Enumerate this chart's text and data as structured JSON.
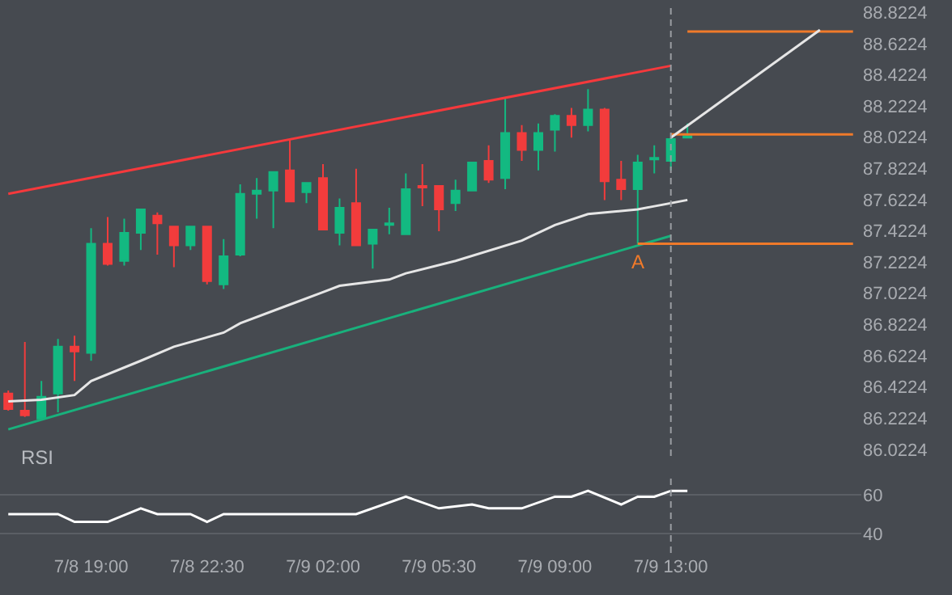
{
  "chart_data": [
    {
      "type": "candlestick",
      "categories": [
        null,
        null,
        null,
        null,
        null,
        "7/8 19:00",
        null,
        null,
        null,
        null,
        null,
        null,
        "7/8 22:30",
        null,
        null,
        null,
        null,
        null,
        null,
        "7/9 02:00",
        null,
        null,
        null,
        null,
        null,
        null,
        "7/9 05:30",
        null,
        null,
        null,
        null,
        null,
        null,
        "7/9 09:00",
        null,
        null,
        null,
        null,
        null,
        null,
        "7/9 13:00",
        null,
        null,
        null,
        null,
        null,
        null,
        null,
        null,
        null,
        null,
        null
      ],
      "ohlc": [
        [
          86.38,
          86.4,
          86.27,
          86.28
        ],
        [
          86.27,
          86.71,
          86.23,
          86.24
        ],
        [
          86.22,
          86.46,
          86.21,
          86.36
        ],
        [
          86.38,
          86.73,
          86.26,
          86.68
        ],
        [
          86.68,
          86.75,
          86.46,
          86.65
        ],
        [
          86.64,
          87.44,
          86.59,
          87.34
        ],
        [
          87.34,
          87.51,
          87.2,
          87.21
        ],
        [
          87.23,
          87.5,
          87.2,
          87.41
        ],
        [
          87.41,
          87.56,
          87.3,
          87.56
        ],
        [
          87.52,
          87.54,
          87.27,
          87.47
        ],
        [
          87.45,
          87.45,
          87.19,
          87.33
        ],
        [
          87.33,
          87.45,
          87.3,
          87.45
        ],
        [
          87.45,
          87.45,
          87.08,
          87.1
        ],
        [
          87.08,
          87.37,
          87.05,
          87.26
        ],
        [
          87.27,
          87.72,
          87.26,
          87.66
        ],
        [
          87.66,
          87.76,
          87.5,
          87.68
        ],
        [
          87.68,
          87.8,
          87.44,
          87.8
        ],
        [
          87.81,
          88.01,
          87.61,
          87.61
        ],
        [
          87.67,
          87.73,
          87.6,
          87.73
        ],
        [
          87.76,
          87.85,
          87.43,
          87.43
        ],
        [
          87.41,
          87.63,
          87.33,
          87.57
        ],
        [
          87.6,
          87.82,
          87.33,
          87.33
        ],
        [
          87.34,
          87.43,
          87.18,
          87.43
        ],
        [
          87.46,
          87.57,
          87.4,
          87.47
        ],
        [
          87.4,
          87.79,
          87.4,
          87.69
        ],
        [
          87.71,
          87.85,
          87.58,
          87.7
        ],
        [
          87.71,
          87.71,
          87.42,
          87.56
        ],
        [
          87.6,
          87.75,
          87.55,
          87.68
        ],
        [
          87.68,
          87.86,
          87.68,
          87.86
        ],
        [
          87.87,
          87.97,
          87.73,
          87.75
        ],
        [
          87.76,
          88.28,
          87.69,
          88.05
        ],
        [
          88.05,
          88.1,
          87.87,
          87.94
        ],
        [
          87.94,
          88.11,
          87.81,
          88.05
        ],
        [
          88.07,
          88.17,
          87.93,
          88.16
        ],
        [
          88.16,
          88.21,
          88.02,
          88.1
        ],
        [
          88.1,
          88.33,
          88.06,
          88.2
        ],
        [
          88.2,
          88.21,
          87.62,
          87.74
        ],
        [
          87.75,
          87.87,
          87.62,
          87.69
        ],
        [
          87.69,
          87.91,
          87.34,
          87.86
        ],
        [
          87.88,
          87.97,
          87.79,
          87.89
        ],
        [
          87.87,
          88.02,
          87.81,
          88.01
        ],
        [
          88.02,
          88.11,
          88.02,
          88.03
        ],
        null,
        null,
        null,
        null,
        null,
        null,
        null,
        null,
        null,
        null
      ],
      "colors": [
        "#f23c3c",
        "#f23c3c",
        "#13b981",
        "#13b981",
        "#f23c3c",
        "#13b981",
        "#f23c3c",
        "#13b981",
        "#13b981",
        "#f23c3c",
        "#f23c3c",
        "#13b981",
        "#f23c3c",
        "#13b981",
        "#13b981",
        "#13b981",
        "#13b981",
        "#f23c3c",
        "#13b981",
        "#f23c3c",
        "#13b981",
        "#f23c3c",
        "#13b981",
        "#13b981",
        "#13b981",
        "#f23c3c",
        "#f23c3c",
        "#13b981",
        "#13b981",
        "#f23c3c",
        "#13b981",
        "#f23c3c",
        "#13b981",
        "#13b981",
        "#f23c3c",
        "#13b981",
        "#f23c3c",
        "#f23c3c",
        "#13b981",
        "#13b981",
        "#13b981",
        "#13b981",
        null,
        null,
        null,
        null,
        null,
        null,
        null,
        null,
        null,
        null
      ],
      "series": [
        {
          "type": "line",
          "color": "#e6e6e6",
          "values": [
            86.33,
            null,
            86.34,
            null,
            86.37,
            86.46,
            null,
            null,
            86.59,
            null,
            86.68,
            null,
            null,
            86.77,
            86.83,
            null,
            null,
            86.95,
            null,
            87.03,
            87.07,
            null,
            null,
            87.11,
            87.15,
            null,
            null,
            87.23,
            null,
            null,
            null,
            87.36,
            null,
            87.46,
            null,
            87.53,
            null,
            null,
            87.56,
            87.58,
            null,
            87.62,
            null,
            null,
            null,
            null,
            null,
            null,
            null,
            null,
            null,
            null
          ]
        },
        {
          "type": "line",
          "color": "#f5393c",
          "values": [
            87.66,
            null,
            null,
            null,
            null,
            null,
            null,
            null,
            null,
            null,
            null,
            null,
            null,
            null,
            null,
            null,
            null,
            null,
            null,
            null,
            null,
            null,
            null,
            null,
            null,
            null,
            null,
            null,
            null,
            null,
            null,
            null,
            null,
            null,
            null,
            null,
            null,
            null,
            null,
            null,
            88.48,
            null,
            null,
            null,
            null,
            null,
            null,
            null,
            null,
            null,
            null,
            null
          ]
        },
        {
          "type": "line",
          "color": "#19b17c",
          "values": [
            86.15,
            null,
            null,
            null,
            null,
            null,
            null,
            null,
            null,
            null,
            null,
            null,
            null,
            null,
            null,
            null,
            null,
            null,
            null,
            null,
            null,
            null,
            null,
            null,
            null,
            null,
            null,
            null,
            null,
            null,
            null,
            null,
            null,
            null,
            null,
            null,
            null,
            null,
            null,
            null,
            87.39,
            null,
            null,
            null,
            null,
            null,
            null,
            null,
            null,
            null,
            null,
            null
          ]
        },
        {
          "type": "line",
          "color": "#f07a2a",
          "values": [
            null,
            null,
            null,
            null,
            null,
            null,
            null,
            null,
            null,
            null,
            null,
            null,
            null,
            null,
            null,
            null,
            null,
            null,
            null,
            null,
            null,
            null,
            null,
            null,
            null,
            null,
            null,
            null,
            null,
            null,
            null,
            null,
            null,
            null,
            null,
            null,
            null,
            null,
            null,
            null,
            null,
            88.7,
            null,
            null,
            null,
            null,
            null,
            null,
            null,
            null,
            null,
            88.7
          ]
        },
        {
          "type": "line",
          "color": "#f07a2a",
          "values": [
            null,
            null,
            null,
            null,
            null,
            null,
            null,
            null,
            null,
            null,
            null,
            null,
            null,
            null,
            null,
            null,
            null,
            null,
            null,
            null,
            null,
            null,
            null,
            null,
            null,
            null,
            null,
            null,
            null,
            null,
            null,
            null,
            null,
            null,
            null,
            null,
            null,
            null,
            null,
            null,
            88.04,
            null,
            null,
            null,
            null,
            null,
            null,
            null,
            null,
            null,
            null,
            88.04
          ]
        },
        {
          "type": "line",
          "color": "#f07a2a",
          "values": [
            null,
            null,
            null,
            null,
            null,
            null,
            null,
            null,
            null,
            null,
            null,
            null,
            null,
            null,
            null,
            null,
            null,
            null,
            null,
            null,
            null,
            null,
            null,
            null,
            null,
            null,
            null,
            null,
            null,
            null,
            null,
            null,
            null,
            null,
            null,
            null,
            null,
            null,
            87.34,
            null,
            null,
            null,
            null,
            null,
            null,
            null,
            null,
            null,
            null,
            null,
            null,
            87.34
          ],
          "value_labels": [
            null,
            null,
            null,
            null,
            null,
            null,
            null,
            null,
            null,
            null,
            null,
            null,
            null,
            null,
            null,
            null,
            null,
            null,
            null,
            null,
            null,
            null,
            null,
            null,
            null,
            null,
            null,
            null,
            null,
            null,
            null,
            null,
            null,
            null,
            null,
            null,
            null,
            null,
            "A",
            null,
            null,
            null,
            null,
            null,
            null,
            null,
            null,
            null,
            null,
            null,
            null,
            null
          ]
        },
        {
          "type": "line",
          "color": "#e6e6e6",
          "values": [
            null,
            null,
            null,
            null,
            null,
            null,
            null,
            null,
            null,
            null,
            null,
            null,
            null,
            null,
            null,
            null,
            null,
            null,
            null,
            null,
            null,
            null,
            null,
            null,
            null,
            null,
            null,
            null,
            null,
            null,
            null,
            null,
            null,
            null,
            null,
            null,
            null,
            null,
            null,
            null,
            88.02,
            null,
            null,
            null,
            null,
            null,
            null,
            null,
            null,
            88.71,
            null,
            null
          ]
        }
      ],
      "ref_lines": [
        {
          "axis": "x",
          "value": "7/9 13:00",
          "color": "#9a9da2",
          "line_style": "dashed"
        }
      ],
      "ylim": [
        85.98,
        88.86
      ],
      "yticks": [
        86.0224,
        86.2224,
        86.4224,
        86.6224,
        86.8224,
        87.0224,
        87.2224,
        87.4224,
        87.6224,
        87.8224,
        88.0224,
        88.2224,
        88.4224,
        88.6224,
        88.8224
      ],
      "tick_labels": "y",
      "grid": false
    },
    {
      "type": "line",
      "title": "RSI",
      "color": "#ffffff",
      "categories": [
        null,
        null,
        null,
        null,
        null,
        "7/8 19:00",
        null,
        null,
        null,
        null,
        null,
        null,
        "7/8 22:30",
        null,
        null,
        null,
        null,
        null,
        null,
        "7/9 02:00",
        null,
        null,
        null,
        null,
        null,
        null,
        "7/9 05:30",
        null,
        null,
        null,
        null,
        null,
        null,
        "7/9 09:00",
        null,
        null,
        null,
        null,
        null,
        null,
        "7/9 13:00",
        null,
        null,
        null,
        null,
        null,
        null,
        null,
        null,
        null,
        null,
        null
      ],
      "values": [
        50,
        null,
        null,
        50,
        46,
        null,
        46,
        null,
        53,
        50,
        null,
        50,
        46,
        50,
        null,
        null,
        null,
        null,
        null,
        null,
        null,
        50,
        null,
        null,
        59,
        null,
        53,
        null,
        55,
        53,
        null,
        53,
        null,
        59,
        59,
        62,
        null,
        55,
        59,
        59,
        62,
        62,
        null,
        null,
        null,
        null,
        null,
        null,
        null,
        null,
        null,
        null
      ],
      "ref_lines": [
        {
          "axis": "x",
          "value": "7/9 13:00",
          "color": "#9a9da2",
          "line_style": "dashed"
        }
      ],
      "ylim": [
        30,
        70
      ],
      "yticks": [
        40,
        60
      ],
      "grid": "y"
    }
  ]
}
